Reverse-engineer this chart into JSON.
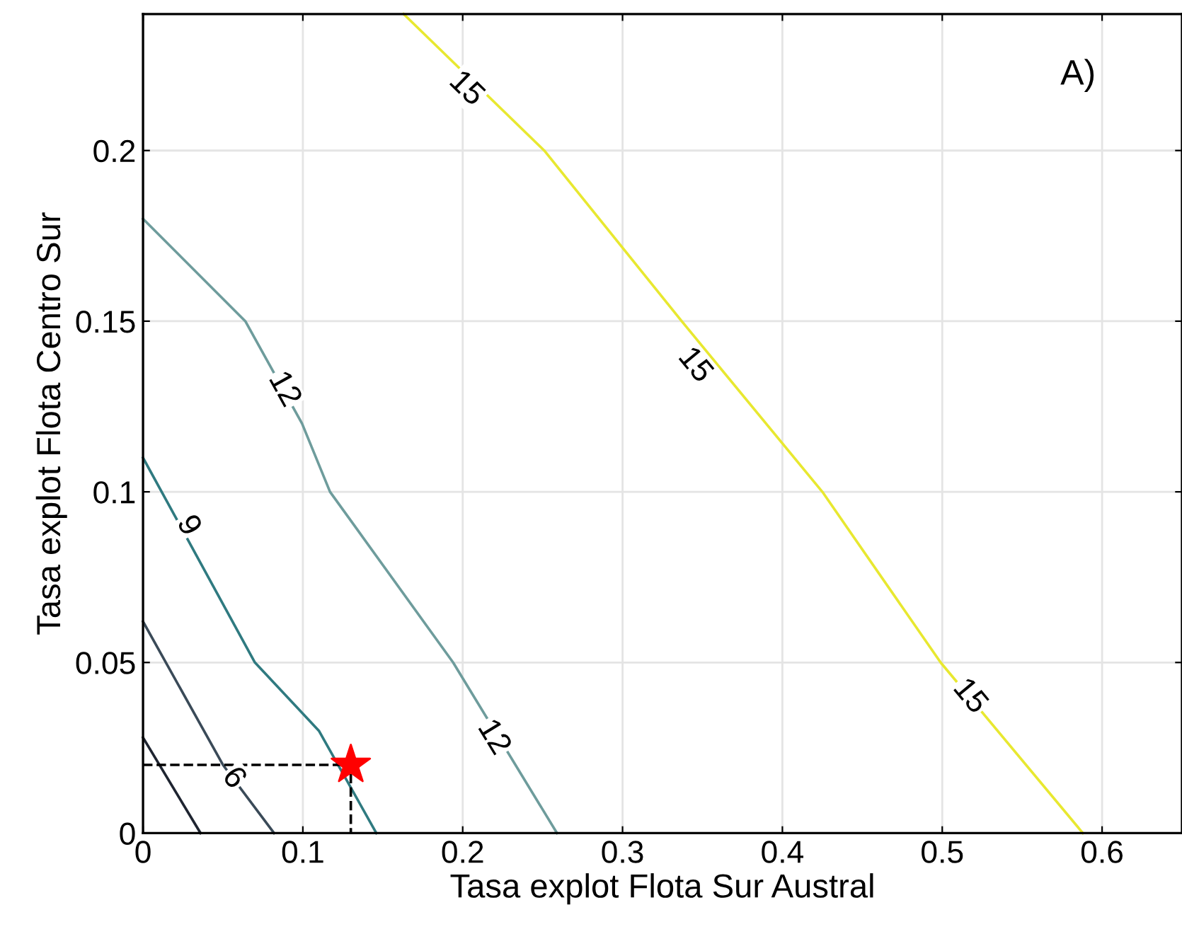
{
  "chart_data": {
    "type": "line",
    "xlabel": "Tasa explot Flota Sur Austral",
    "ylabel": "Tasa explot Flota Centro Sur",
    "xlim": [
      0,
      0.65
    ],
    "ylim": [
      0,
      0.24
    ],
    "xticks": [
      0,
      0.1,
      0.2,
      0.3,
      0.4,
      0.5,
      0.6
    ],
    "yticks": [
      0,
      0.05,
      0.1,
      0.15,
      0.2
    ],
    "grid": true,
    "series": [
      {
        "color": "#e8e830",
        "x": [
          0.163,
          0.251,
          0.337,
          0.425,
          0.499,
          0.588
        ],
        "values": [
          0.24,
          0.2,
          0.15,
          0.1,
          0.05,
          0
        ]
      },
      {
        "color": "#6e9c9c",
        "x": [
          0,
          0.064,
          0.0995,
          0.117,
          0.194,
          0.259
        ],
        "values": [
          0.18,
          0.15,
          0.12,
          0.1,
          0.05,
          0
        ]
      },
      {
        "color": "#2f7a80",
        "x": [
          0,
          0.07,
          0.11,
          0.146
        ],
        "values": [
          0.11,
          0.05,
          0.03,
          0
        ]
      },
      {
        "color": "#3a4a58",
        "x": [
          0,
          0.05,
          0.082
        ],
        "values": [
          0.062,
          0.02,
          0
        ]
      },
      {
        "color": "#1e2430",
        "x": [
          0,
          0.036
        ],
        "values": [
          0.028,
          0
        ]
      },
      {
        "color": "#000000",
        "line_style": "dashed",
        "x": [
          0,
          0.13,
          0.13
        ],
        "values": [
          0.02,
          0.02,
          0
        ]
      },
      {
        "type": "scatter",
        "marker": "star",
        "color": "#ff0000",
        "x": [
          0.13
        ],
        "values": [
          0.02
        ]
      }
    ],
    "annotations": [
      {
        "text": "15",
        "x": 0.202,
        "y": 0.218
      },
      {
        "text": "15",
        "x": 0.345,
        "y": 0.137
      },
      {
        "text": "15",
        "x": 0.517,
        "y": 0.04
      },
      {
        "text": "12",
        "x": 0.088,
        "y": 0.13
      },
      {
        "text": "12",
        "x": 0.219,
        "y": 0.028
      },
      {
        "text": "9",
        "x": 0.028,
        "y": 0.09
      },
      {
        "text": "6",
        "x": 0.0564,
        "y": 0.016
      },
      "A)"
    ]
  }
}
